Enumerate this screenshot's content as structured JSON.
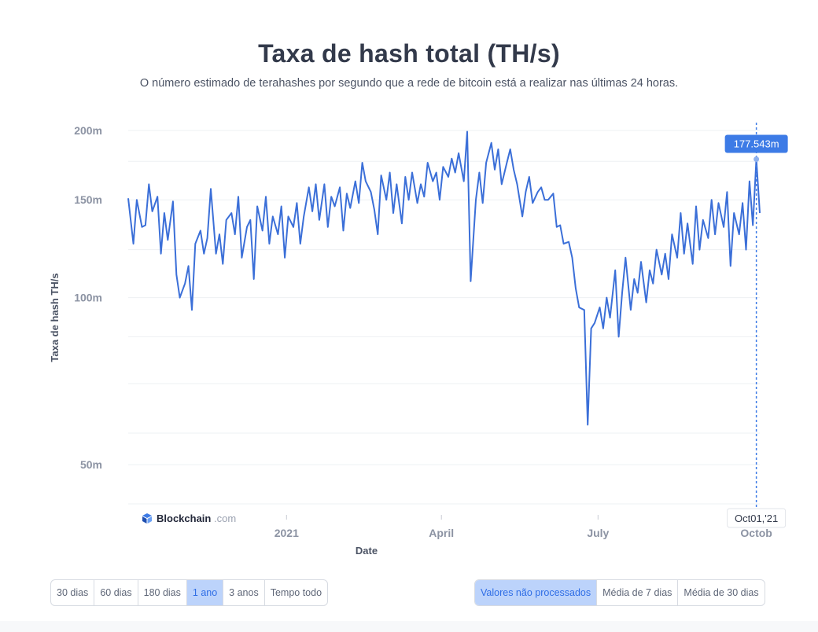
{
  "title": "Taxa de hash total (TH/s)",
  "subtitle": "O número estimado de terahashes por segundo que a rede de bitcoin está a realizar nas últimas 24 horas.",
  "brand": {
    "name": "Blockchain",
    "domain": ".com"
  },
  "colors": {
    "line": "#3b6fd8",
    "accent": "#3d7be6",
    "grid": "#eef0f3",
    "active_button": "#bcd3fb"
  },
  "chart_data": {
    "type": "line",
    "title": "Taxa de hash total (TH/s)",
    "xlabel": "Date",
    "ylabel": "Taxa de hash TH/s",
    "y_scale": "log",
    "y_ticks": [
      {
        "value": 50,
        "label": "50m"
      },
      {
        "value": 100,
        "label": "100m"
      },
      {
        "value": 150,
        "label": "150m"
      },
      {
        "value": 200,
        "label": "200m"
      }
    ],
    "x_ticks": [
      {
        "date": "2021-01-01",
        "label": "2021"
      },
      {
        "date": "2021-04-01",
        "label": "April"
      },
      {
        "date": "2021-07-01",
        "label": "July"
      },
      {
        "date": "2021-10-01",
        "label": "Octob"
      }
    ],
    "x_range": [
      "2020-10-01",
      "2021-10-03"
    ],
    "grid": true,
    "series": [
      {
        "values_unit": "million TH/s",
        "points": [
          [
            "2020-10-01",
            151
          ],
          [
            "2020-10-04",
            125
          ],
          [
            "2020-10-06",
            150
          ],
          [
            "2020-10-09",
            134
          ],
          [
            "2020-10-11",
            135
          ],
          [
            "2020-10-13",
            160
          ],
          [
            "2020-10-15",
            143
          ],
          [
            "2020-10-18",
            152
          ],
          [
            "2020-10-20",
            120
          ],
          [
            "2020-10-22",
            142
          ],
          [
            "2020-10-24",
            127
          ],
          [
            "2020-10-27",
            149
          ],
          [
            "2020-10-29",
            110
          ],
          [
            "2020-10-31",
            100
          ],
          [
            "2020-11-03",
            106
          ],
          [
            "2020-11-05",
            114
          ],
          [
            "2020-11-07",
            95
          ],
          [
            "2020-11-09",
            125
          ],
          [
            "2020-11-12",
            132
          ],
          [
            "2020-11-14",
            120
          ],
          [
            "2020-11-16",
            128
          ],
          [
            "2020-11-18",
            157
          ],
          [
            "2020-11-21",
            120
          ],
          [
            "2020-11-23",
            130
          ],
          [
            "2020-11-25",
            115
          ],
          [
            "2020-11-27",
            138
          ],
          [
            "2020-11-30",
            142
          ],
          [
            "2020-12-02",
            130
          ],
          [
            "2020-12-04",
            152
          ],
          [
            "2020-12-06",
            118
          ],
          [
            "2020-12-09",
            134
          ],
          [
            "2020-12-11",
            138
          ],
          [
            "2020-12-13",
            108
          ],
          [
            "2020-12-15",
            146
          ],
          [
            "2020-12-18",
            132
          ],
          [
            "2020-12-20",
            152
          ],
          [
            "2020-12-22",
            125
          ],
          [
            "2020-12-24",
            140
          ],
          [
            "2020-12-27",
            130
          ],
          [
            "2020-12-29",
            146
          ],
          [
            "2020-12-31",
            118
          ],
          [
            "2021-01-02",
            140
          ],
          [
            "2021-01-05",
            134
          ],
          [
            "2021-01-07",
            148
          ],
          [
            "2021-01-09",
            125
          ],
          [
            "2021-01-11",
            140
          ],
          [
            "2021-01-14",
            158
          ],
          [
            "2021-01-16",
            143
          ],
          [
            "2021-01-18",
            160
          ],
          [
            "2021-01-20",
            138
          ],
          [
            "2021-01-23",
            160
          ],
          [
            "2021-01-25",
            134
          ],
          [
            "2021-01-27",
            152
          ],
          [
            "2021-01-29",
            146
          ],
          [
            "2021-02-01",
            158
          ],
          [
            "2021-02-03",
            132
          ],
          [
            "2021-02-05",
            154
          ],
          [
            "2021-02-07",
            145
          ],
          [
            "2021-02-10",
            162
          ],
          [
            "2021-02-12",
            148
          ],
          [
            "2021-02-14",
            175
          ],
          [
            "2021-02-16",
            162
          ],
          [
            "2021-02-19",
            155
          ],
          [
            "2021-02-21",
            144
          ],
          [
            "2021-02-23",
            130
          ],
          [
            "2021-02-25",
            166
          ],
          [
            "2021-02-28",
            150
          ],
          [
            "2021-03-02",
            168
          ],
          [
            "2021-03-04",
            142
          ],
          [
            "2021-03-06",
            160
          ],
          [
            "2021-03-09",
            136
          ],
          [
            "2021-03-11",
            165
          ],
          [
            "2021-03-13",
            150
          ],
          [
            "2021-03-15",
            168
          ],
          [
            "2021-03-18",
            148
          ],
          [
            "2021-03-20",
            160
          ],
          [
            "2021-03-22",
            152
          ],
          [
            "2021-03-24",
            175
          ],
          [
            "2021-03-27",
            162
          ],
          [
            "2021-03-29",
            168
          ],
          [
            "2021-03-31",
            150
          ],
          [
            "2021-04-02",
            172
          ],
          [
            "2021-04-05",
            165
          ],
          [
            "2021-04-07",
            178
          ],
          [
            "2021-04-09",
            168
          ],
          [
            "2021-04-11",
            182
          ],
          [
            "2021-04-14",
            162
          ],
          [
            "2021-04-16",
            199
          ],
          [
            "2021-04-18",
            107
          ],
          [
            "2021-04-21",
            150
          ],
          [
            "2021-04-23",
            168
          ],
          [
            "2021-04-25",
            148
          ],
          [
            "2021-04-27",
            175
          ],
          [
            "2021-04-30",
            190
          ],
          [
            "2021-05-02",
            170
          ],
          [
            "2021-05-04",
            185
          ],
          [
            "2021-05-06",
            160
          ],
          [
            "2021-05-09",
            175
          ],
          [
            "2021-05-11",
            185
          ],
          [
            "2021-05-13",
            170
          ],
          [
            "2021-05-15",
            160
          ],
          [
            "2021-05-18",
            140
          ],
          [
            "2021-05-20",
            155
          ],
          [
            "2021-05-22",
            165
          ],
          [
            "2021-05-24",
            148
          ],
          [
            "2021-05-27",
            155
          ],
          [
            "2021-05-29",
            158
          ],
          [
            "2021-05-31",
            150
          ],
          [
            "2021-06-02",
            150
          ],
          [
            "2021-06-05",
            154
          ],
          [
            "2021-06-07",
            134
          ],
          [
            "2021-06-09",
            135
          ],
          [
            "2021-06-11",
            125
          ],
          [
            "2021-06-14",
            126
          ],
          [
            "2021-06-16",
            118
          ],
          [
            "2021-06-18",
            104
          ],
          [
            "2021-06-20",
            96
          ],
          [
            "2021-06-23",
            95
          ],
          [
            "2021-06-25",
            59
          ],
          [
            "2021-06-27",
            88
          ],
          [
            "2021-06-29",
            90
          ],
          [
            "2021-07-02",
            96
          ],
          [
            "2021-07-04",
            88
          ],
          [
            "2021-07-06",
            100
          ],
          [
            "2021-07-08",
            92
          ],
          [
            "2021-07-11",
            112
          ],
          [
            "2021-07-13",
            85
          ],
          [
            "2021-07-15",
            102
          ],
          [
            "2021-07-17",
            118
          ],
          [
            "2021-07-20",
            95
          ],
          [
            "2021-07-22",
            108
          ],
          [
            "2021-07-24",
            102
          ],
          [
            "2021-07-26",
            116
          ],
          [
            "2021-07-29",
            98
          ],
          [
            "2021-07-31",
            112
          ],
          [
            "2021-08-02",
            106
          ],
          [
            "2021-08-04",
            122
          ],
          [
            "2021-08-07",
            110
          ],
          [
            "2021-08-09",
            120
          ],
          [
            "2021-08-11",
            108
          ],
          [
            "2021-08-13",
            130
          ],
          [
            "2021-08-16",
            118
          ],
          [
            "2021-08-18",
            142
          ],
          [
            "2021-08-20",
            120
          ],
          [
            "2021-08-22",
            136
          ],
          [
            "2021-08-25",
            115
          ],
          [
            "2021-08-27",
            146
          ],
          [
            "2021-08-29",
            122
          ],
          [
            "2021-08-31",
            138
          ],
          [
            "2021-09-03",
            128
          ],
          [
            "2021-09-05",
            150
          ],
          [
            "2021-09-07",
            130
          ],
          [
            "2021-09-09",
            148
          ],
          [
            "2021-09-12",
            134
          ],
          [
            "2021-09-14",
            155
          ],
          [
            "2021-09-16",
            114
          ],
          [
            "2021-09-18",
            142
          ],
          [
            "2021-09-21",
            130
          ],
          [
            "2021-09-23",
            148
          ],
          [
            "2021-09-25",
            122
          ],
          [
            "2021-09-27",
            162
          ],
          [
            "2021-09-29",
            135
          ],
          [
            "2021-10-01",
            177.5
          ],
          [
            "2021-10-03",
            142
          ]
        ]
      }
    ],
    "highlight": {
      "date": "2021-10-01",
      "value": 177.543,
      "value_label": "177.543m",
      "date_label": "Oct01,'21"
    }
  },
  "controls": {
    "ranges": [
      {
        "label": "30 dias",
        "active": false
      },
      {
        "label": "60 dias",
        "active": false
      },
      {
        "label": "180 dias",
        "active": false
      },
      {
        "label": "1 ano",
        "active": true
      },
      {
        "label": "3 anos",
        "active": false
      },
      {
        "label": "Tempo todo",
        "active": false
      }
    ],
    "modes": [
      {
        "label": "Valores não processados",
        "active": true
      },
      {
        "label": "Média de 7 dias",
        "active": false
      },
      {
        "label": "Média de 30 dias",
        "active": false
      }
    ]
  }
}
